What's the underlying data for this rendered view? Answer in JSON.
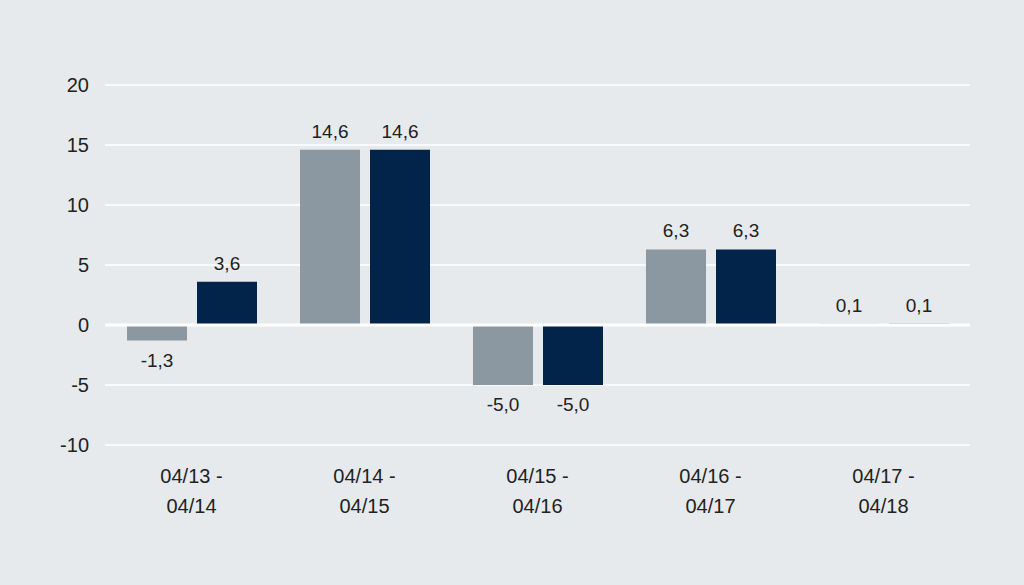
{
  "chart_data": {
    "type": "bar",
    "categories": [
      "04/13 -\n04/14",
      "04/14 -\n04/15",
      "04/15 -\n04/16",
      "04/16 -\n04/17",
      "04/17 -\n04/18"
    ],
    "series": [
      {
        "color": "#8b98a2",
        "values": [
          -1.3,
          14.6,
          -5.0,
          6.3,
          0.1
        ],
        "value_labels": [
          "-1,3",
          "14,6",
          "-5,0",
          "6,3",
          "0,1"
        ]
      },
      {
        "color": "#02234a",
        "values": [
          3.6,
          14.6,
          -5.0,
          6.3,
          0.1
        ],
        "value_labels": [
          "3,6",
          "14,6",
          "-5,0",
          "6,3",
          "0,1"
        ]
      }
    ],
    "ylim": [
      -10,
      20
    ],
    "yticks": [
      -10,
      -5,
      0,
      5,
      10,
      15,
      20
    ],
    "grid": true,
    "data_labels": true
  }
}
